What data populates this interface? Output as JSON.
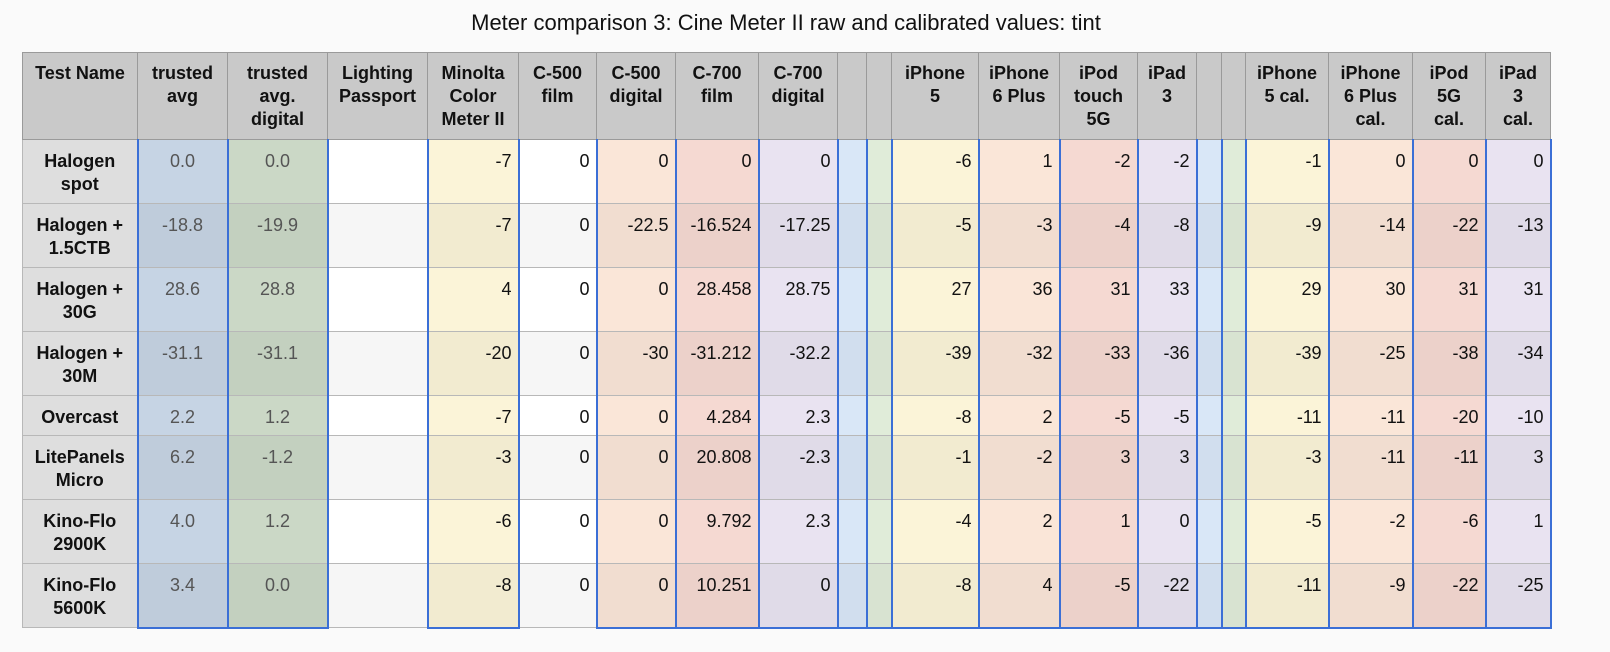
{
  "title": "Meter comparison 3: Cine Meter II raw and calibrated values: tint",
  "table": {
    "headers": [
      "Test Name",
      "trusted\navg",
      "trusted\navg.\ndigital",
      "Lighting\nPassport",
      "Minolta\nColor\nMeter II",
      "C-500\nfilm",
      "C-500\ndigital",
      "C-700\nfilm",
      "C-700\ndigital",
      null,
      null,
      "iPhone\n5",
      "iPhone\n6 Plus",
      "iPod\ntouch\n5G",
      "iPad\n3",
      null,
      null,
      "iPhone\n5 cal.",
      "iPhone\n6 Plus\ncal.",
      "iPod\n5G\ncal.",
      "iPad\n3\ncal."
    ],
    "rows": [
      {
        "label": "Halogen\nspot",
        "cells": [
          "0.0",
          "0.0",
          null,
          "-7",
          "0",
          "0",
          "0",
          "0",
          null,
          null,
          "-6",
          "1",
          "-2",
          "-2",
          null,
          null,
          "-1",
          "0",
          "0",
          "0"
        ]
      },
      {
        "label": "Halogen +\n1.5CTB",
        "cells": [
          "-18.8",
          "-19.9",
          null,
          "-7",
          "0",
          "-22.5",
          "-16.524",
          "-17.25",
          null,
          null,
          "-5",
          "-3",
          "-4",
          "-8",
          null,
          null,
          "-9",
          "-14",
          "-22",
          "-13"
        ]
      },
      {
        "label": "Halogen +\n30G",
        "cells": [
          "28.6",
          "28.8",
          null,
          "4",
          "0",
          "0",
          "28.458",
          "28.75",
          null,
          null,
          "27",
          "36",
          "31",
          "33",
          null,
          null,
          "29",
          "30",
          "31",
          "31"
        ]
      },
      {
        "label": "Halogen +\n30M",
        "cells": [
          "-31.1",
          "-31.1",
          null,
          "-20",
          "0",
          "-30",
          "-31.212",
          "-32.2",
          null,
          null,
          "-39",
          "-32",
          "-33",
          "-36",
          null,
          null,
          "-39",
          "-25",
          "-38",
          "-34"
        ]
      },
      {
        "label": "Overcast",
        "cells": [
          "2.2",
          "1.2",
          null,
          "-7",
          "0",
          "0",
          "4.284",
          "2.3",
          null,
          null,
          "-8",
          "2",
          "-5",
          "-5",
          null,
          null,
          "-11",
          "-11",
          "-20",
          "-10"
        ]
      },
      {
        "label": "LitePanels\nMicro",
        "cells": [
          "6.2",
          "-1.2",
          null,
          "-3",
          "0",
          "0",
          "20.808",
          "-2.3",
          null,
          null,
          "-1",
          "-2",
          "3",
          "3",
          null,
          null,
          "-3",
          "-11",
          "-11",
          "3"
        ]
      },
      {
        "label": "Kino-Flo\n2900K",
        "cells": [
          "4.0",
          "1.2",
          null,
          "-6",
          "0",
          "0",
          "9.792",
          "2.3",
          null,
          null,
          "-4",
          "2",
          "1",
          "0",
          null,
          null,
          "-5",
          "-2",
          "-6",
          "1"
        ]
      },
      {
        "label": "Kino-Flo\n5600K",
        "cells": [
          "3.4",
          "0.0",
          null,
          "-8",
          "0",
          "0",
          "10.251",
          "0",
          null,
          null,
          "-8",
          "4",
          "-5",
          "-22",
          null,
          null,
          "-11",
          "-9",
          "-22",
          "-25"
        ]
      }
    ]
  }
}
